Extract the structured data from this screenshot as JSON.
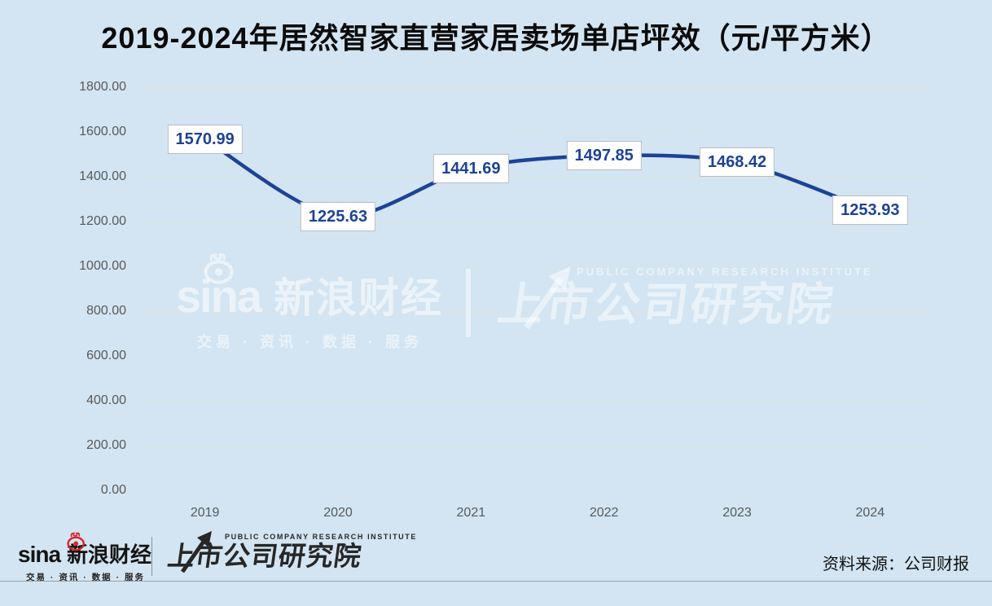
{
  "title": "2019-2024年居然智家直营家居卖场单店坪效（元/平方米）",
  "chart_data": {
    "type": "line",
    "title": "2019-2024年居然智家直营家居卖场单店坪效（元/平方米）",
    "categories": [
      "2019",
      "2020",
      "2021",
      "2022",
      "2023",
      "2024"
    ],
    "values": [
      1570.99,
      1225.63,
      1441.69,
      1497.85,
      1468.42,
      1253.93
    ],
    "point_labels": [
      "1570.99",
      "1225.63",
      "1441.69",
      "1497.85",
      "1468.42",
      "1253.93"
    ],
    "xlabel": "",
    "ylabel": "",
    "ylim": [
      0,
      1800
    ],
    "ytick_labels": [
      "1800.00",
      "1600.00",
      "1400.00",
      "1200.00",
      "1000.00",
      "800.00",
      "600.00",
      "400.00",
      "200.00",
      "0.00"
    ],
    "grid": true,
    "legend": "none"
  },
  "watermark": {
    "sina_word": "sina",
    "sina_name": "新浪财经",
    "sina_tagline": "交易 · 资讯 · 数据 · 服务",
    "institute_subtitle": "PUBLIC COMPANY RESEARCH INSTITUTE",
    "institute_name": "上市公司研究院"
  },
  "footer": {
    "sina_word": "sina",
    "sina_name": "新浪财经",
    "sina_tagline": "交易 · 资讯 · 数据 · 服务",
    "institute_subtitle": "PUBLIC COMPANY RESEARCH INSTITUTE",
    "institute_name": "上市公司研究院",
    "source_label": "资料来源：公司财报"
  },
  "colors": {
    "background": "#D3E5F2",
    "line": "#1D4396",
    "data_label_text": "#1D4396",
    "grid": "#DFE3DF",
    "axis_text": "#595959",
    "label_border": "#B9BDC2",
    "sina_red": "#D7262C"
  }
}
